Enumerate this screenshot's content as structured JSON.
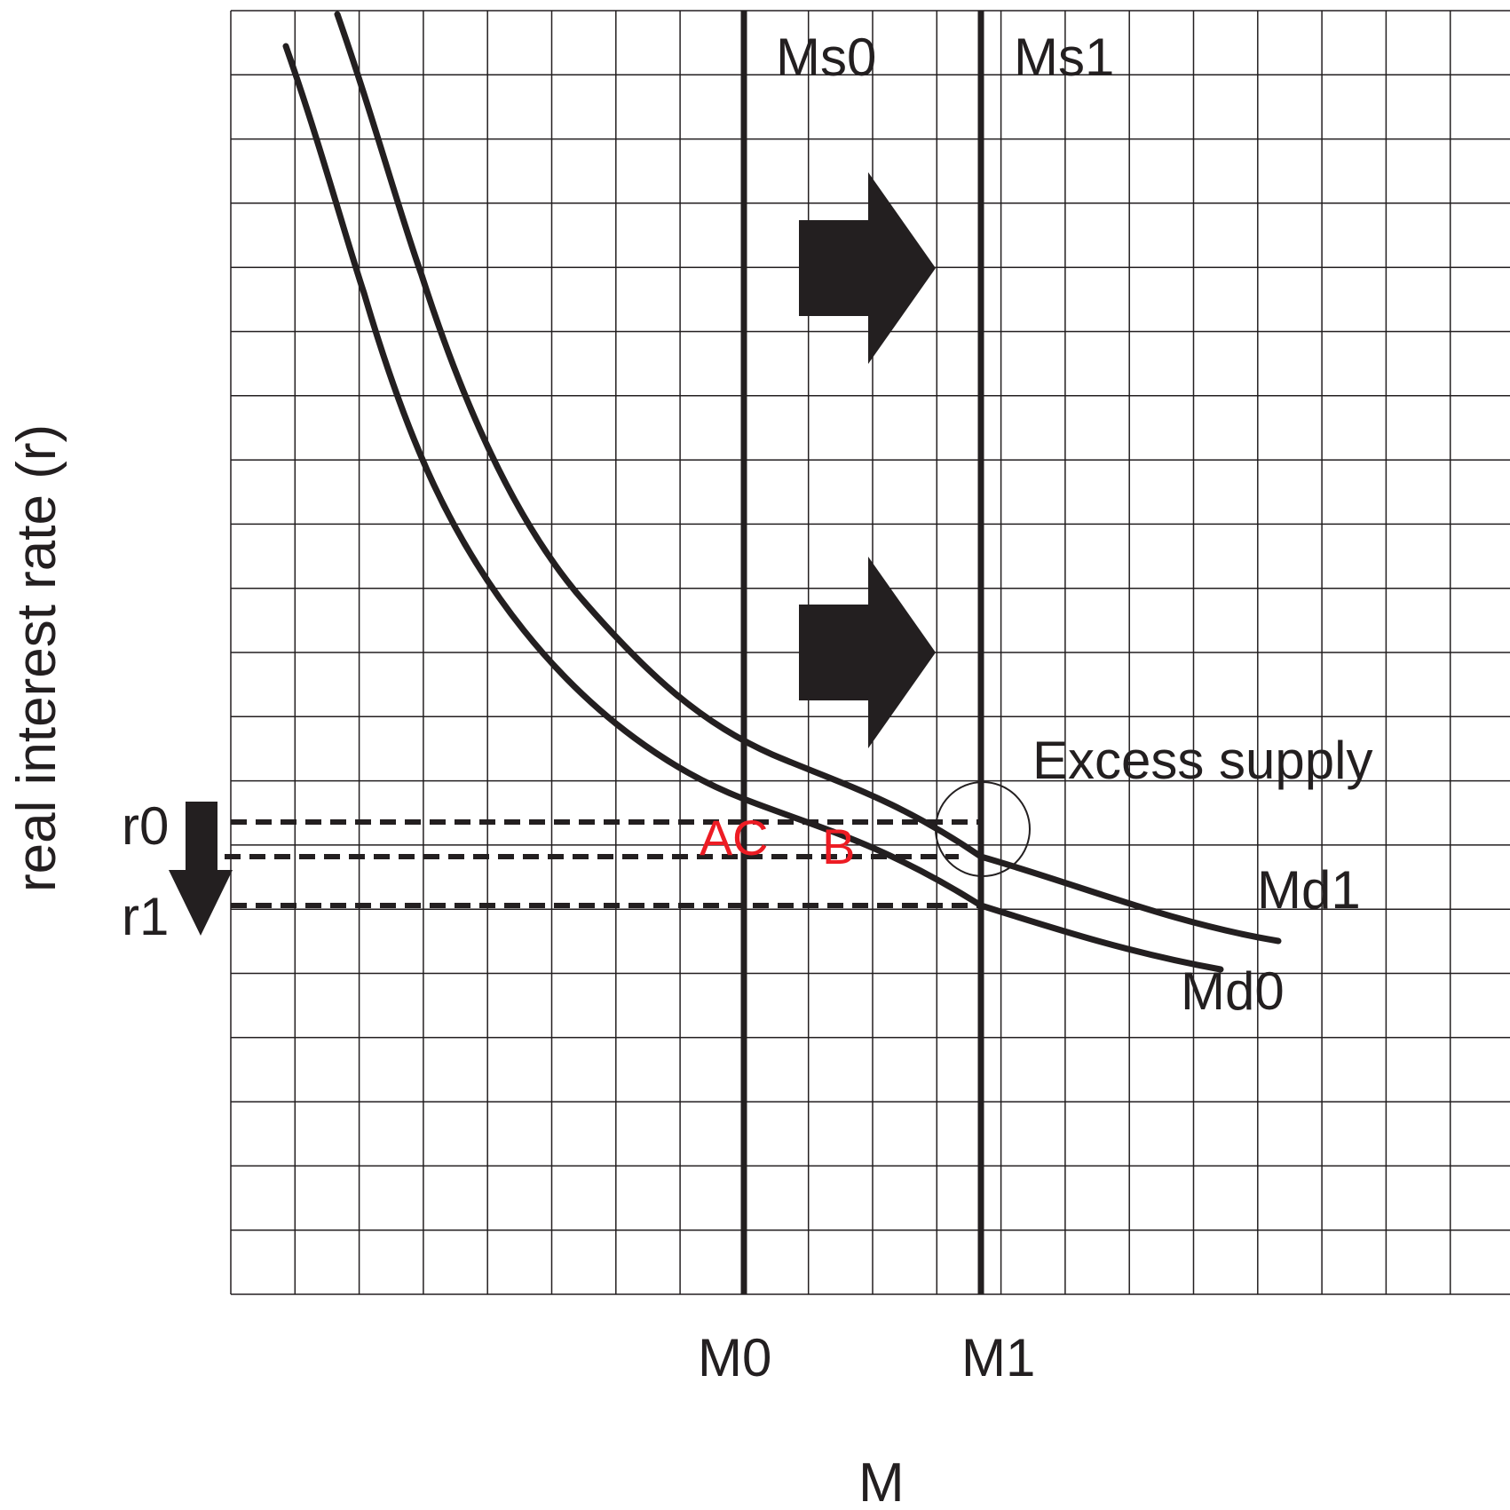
{
  "colors": {
    "ink": "#231f20",
    "grid": "#231f20",
    "highlight": "#ed1c24",
    "background": "#ffffff"
  },
  "axes": {
    "y_label": "real interest rate (r)",
    "x_label": "M",
    "x_ticks": [
      "M0",
      "M1"
    ],
    "y_ticks": [
      "r0",
      "r1"
    ]
  },
  "curves": {
    "supply": [
      "Ms0",
      "Ms1"
    ],
    "demand": [
      "Md0",
      "Md1"
    ]
  },
  "annotations": {
    "excess": "Excess supply",
    "point_a": "A",
    "point_c": "C",
    "point_b": "B"
  },
  "icons": [
    "right-arrow-icon",
    "right-arrow-icon",
    "down-arrow-icon"
  ]
}
